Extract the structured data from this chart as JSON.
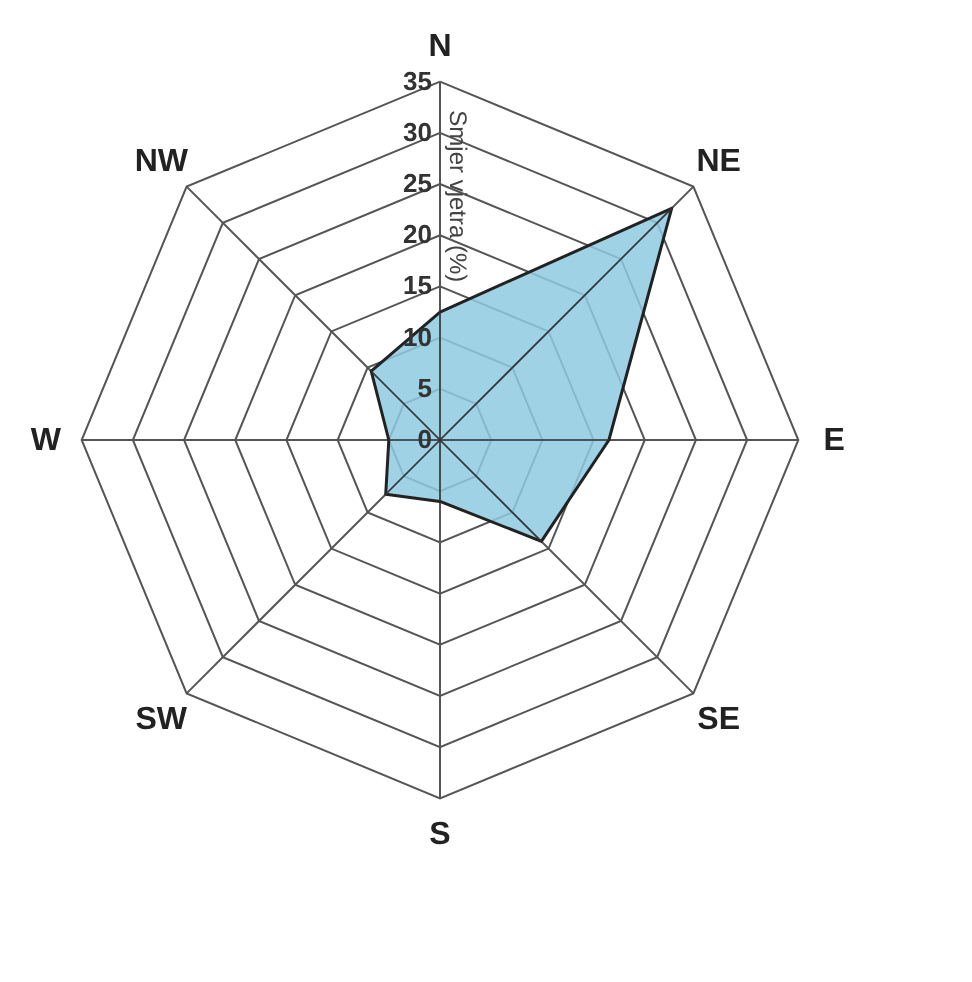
{
  "chart_data": {
    "type": "radar",
    "ylabel": "Smjer vjetra (%)",
    "categories": [
      "N",
      "NE",
      "E",
      "SE",
      "S",
      "SW",
      "W",
      "NW"
    ],
    "series": [
      {
        "color": "#8ecae0",
        "values": [
          12.5,
          32,
          16.5,
          14,
          6,
          7.5,
          5,
          9.5
        ]
      }
    ],
    "ylim": [
      0,
      35
    ],
    "yticks": [
      0,
      5,
      10,
      15,
      20,
      25,
      30,
      35
    ],
    "grid": true
  }
}
